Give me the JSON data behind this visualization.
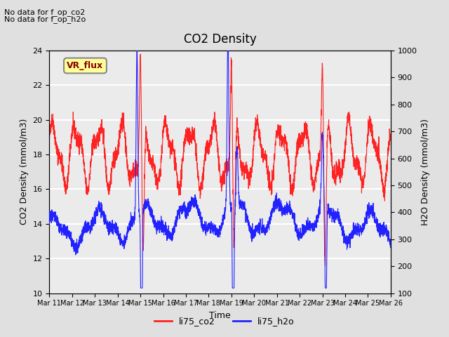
{
  "title": "CO2 Density",
  "xlabel": "Time",
  "ylabel_left": "CO2 Density (mmol/m3)",
  "ylabel_right": "H2O Density (mmol/m3)",
  "annotation_lines": [
    "No data for f_op_co2",
    "No data for f_op_h2o"
  ],
  "vr_flux_label": "VR_flux",
  "xlim": [
    0,
    15
  ],
  "ylim_left": [
    10,
    24
  ],
  "ylim_right": [
    100,
    1000
  ],
  "xtick_labels": [
    "Mar 11",
    "Mar 12",
    "Mar 13",
    "Mar 14",
    "Mar 15",
    "Mar 16",
    "Mar 17",
    "Mar 18",
    "Mar 19",
    "Mar 20",
    "Mar 21",
    "Mar 22",
    "Mar 23",
    "Mar 24",
    "Mar 25",
    "Mar 26"
  ],
  "co2_color": "#FF2222",
  "h2o_color": "#2222FF",
  "bg_color": "#E0E0E0",
  "plot_bg_color": "#EBEBEB",
  "legend_co2": "li75_co2",
  "legend_h2o": "li75_h2o",
  "yticks_left": [
    10,
    12,
    14,
    16,
    18,
    20,
    22,
    24
  ],
  "yticks_right": [
    100,
    200,
    300,
    400,
    500,
    600,
    700,
    800,
    900,
    1000
  ]
}
